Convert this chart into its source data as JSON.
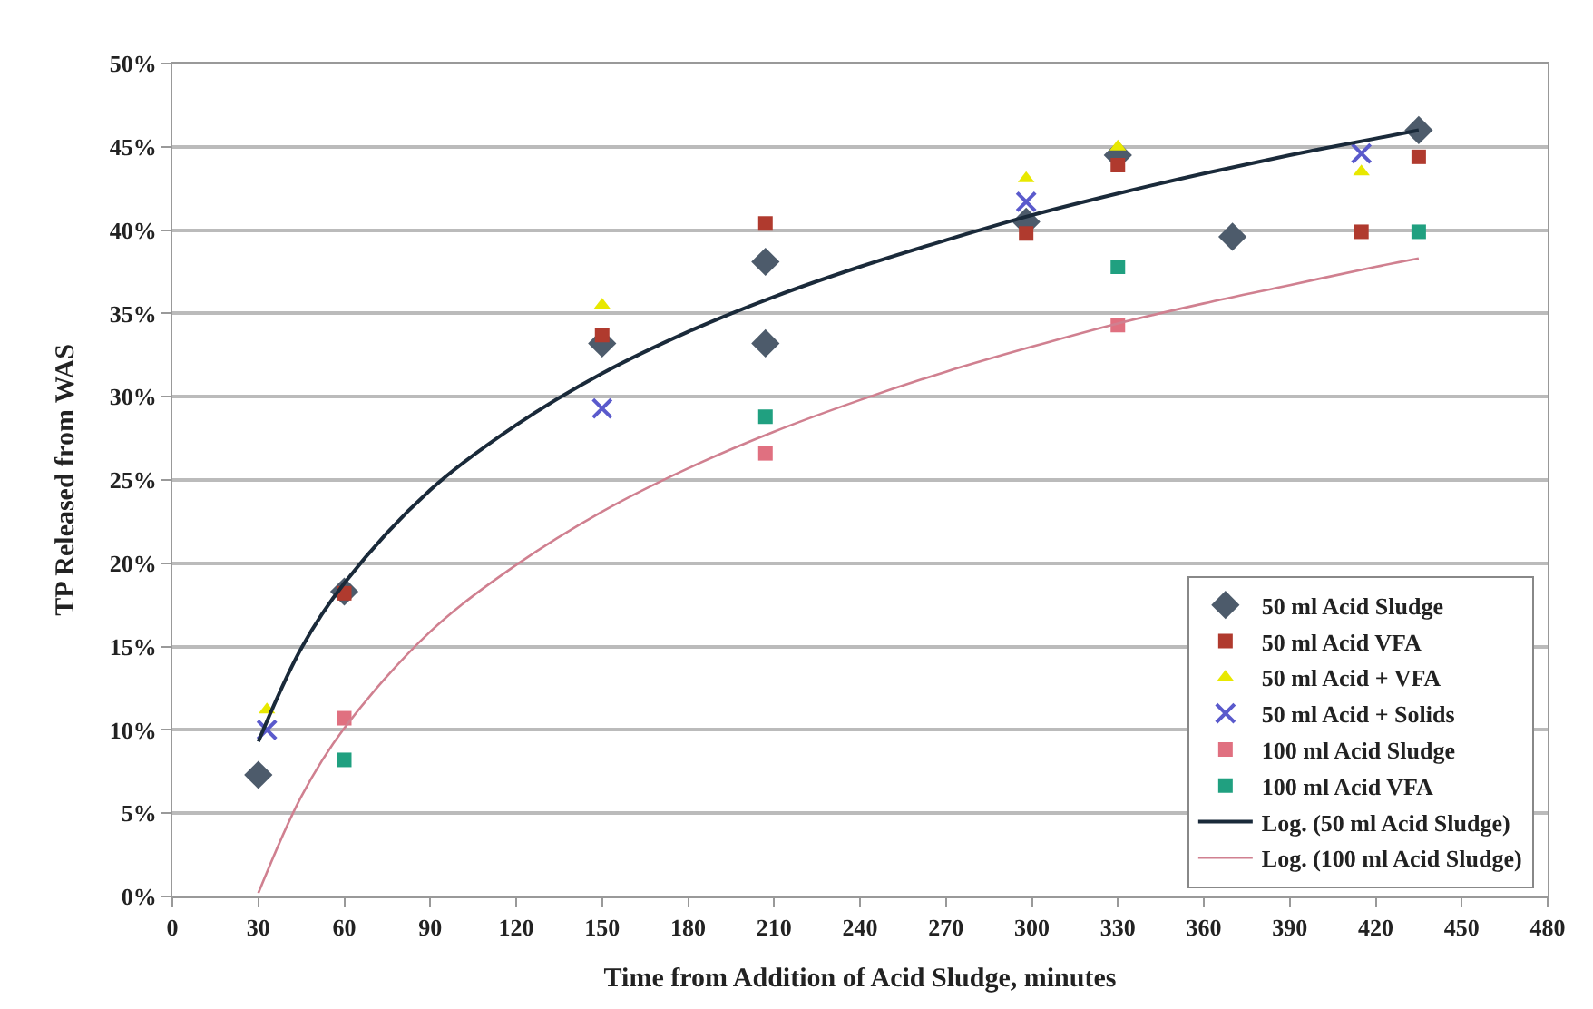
{
  "chart_data": {
    "type": "scatter",
    "xlabel": "Time from Addition of Acid Sludge, minutes",
    "ylabel": "TP Released from WAS",
    "xlim": [
      0,
      480
    ],
    "xticks": [
      0,
      30,
      60,
      90,
      120,
      150,
      180,
      210,
      240,
      270,
      300,
      330,
      360,
      390,
      420,
      450,
      480
    ],
    "ylim": [
      0,
      50
    ],
    "yticks": [
      {
        "value": 0,
        "label": "0%"
      },
      {
        "value": 5,
        "label": "5%"
      },
      {
        "value": 10,
        "label": "10%"
      },
      {
        "value": 15,
        "label": "15%"
      },
      {
        "value": 20,
        "label": "20%"
      },
      {
        "value": 25,
        "label": "25%"
      },
      {
        "value": 30,
        "label": "30%"
      },
      {
        "value": 35,
        "label": "35%"
      },
      {
        "value": 40,
        "label": "40%"
      },
      {
        "value": 45,
        "label": "45%"
      },
      {
        "value": 50,
        "label": "50%"
      }
    ],
    "grid": "y",
    "legend": "bottom right",
    "series": [
      {
        "name": "50 ml Acid Sludge",
        "color": "#4d5b6b",
        "marker": "diamond",
        "x": [
          30,
          60,
          150,
          207,
          207,
          298,
          330,
          370,
          435
        ],
        "values": [
          7.3,
          18.3,
          33.2,
          38.1,
          33.2,
          40.5,
          44.5,
          39.6,
          46.0
        ]
      },
      {
        "name": "50 ml Acid VFA",
        "color": "#b03a2e",
        "marker": "square",
        "x": [
          60,
          150,
          207,
          298,
          330,
          415,
          435
        ],
        "values": [
          18.2,
          33.7,
          40.4,
          39.8,
          43.9,
          39.9,
          44.4
        ]
      },
      {
        "name": "50 ml Acid + VFA",
        "color": "#e8e800",
        "marker": "triangle",
        "x": [
          33,
          150,
          298,
          330,
          415
        ],
        "values": [
          11.2,
          35.5,
          43.1,
          45.0,
          43.5
        ]
      },
      {
        "name": "50 ml Acid + Solids",
        "color": "#5a5acc",
        "marker": "cross",
        "x": [
          33,
          150,
          298,
          415
        ],
        "values": [
          10.0,
          29.3,
          41.7,
          44.6
        ]
      },
      {
        "name": "100 ml Acid Sludge",
        "color": "#e07080",
        "marker": "square",
        "x": [
          60,
          207,
          330
        ],
        "values": [
          10.7,
          26.6,
          34.3
        ]
      },
      {
        "name": "100 ml Acid VFA",
        "color": "#20a080",
        "marker": "square",
        "x": [
          60,
          207,
          330,
          435
        ],
        "values": [
          8.2,
          28.8,
          37.8,
          39.9
        ]
      },
      {
        "name": "Log. (50 ml Acid Sludge)",
        "type": "line",
        "color": "#1a2a3a",
        "marker": "none",
        "line_style": "solid",
        "x": [
          30,
          45,
          60,
          90,
          120,
          150,
          180,
          210,
          240,
          270,
          300,
          330,
          360,
          390,
          420,
          435
        ],
        "values": [
          9.3,
          14.9,
          18.8,
          24.4,
          28.3,
          31.4,
          33.9,
          36.0,
          37.8,
          39.4,
          40.9,
          42.2,
          43.4,
          44.5,
          45.5,
          46.0
        ]
      },
      {
        "name": "Log. (100 ml Acid Sludge)",
        "type": "line",
        "color": "#d08090",
        "marker": "none",
        "line_style": "solid",
        "x": [
          30,
          45,
          60,
          90,
          120,
          150,
          180,
          210,
          240,
          270,
          300,
          330,
          360,
          390,
          420,
          435
        ],
        "values": [
          0.2,
          6.0,
          10.1,
          15.9,
          19.9,
          23.1,
          25.7,
          27.9,
          29.8,
          31.5,
          33.0,
          34.4,
          35.6,
          36.7,
          37.8,
          38.3
        ]
      }
    ]
  }
}
